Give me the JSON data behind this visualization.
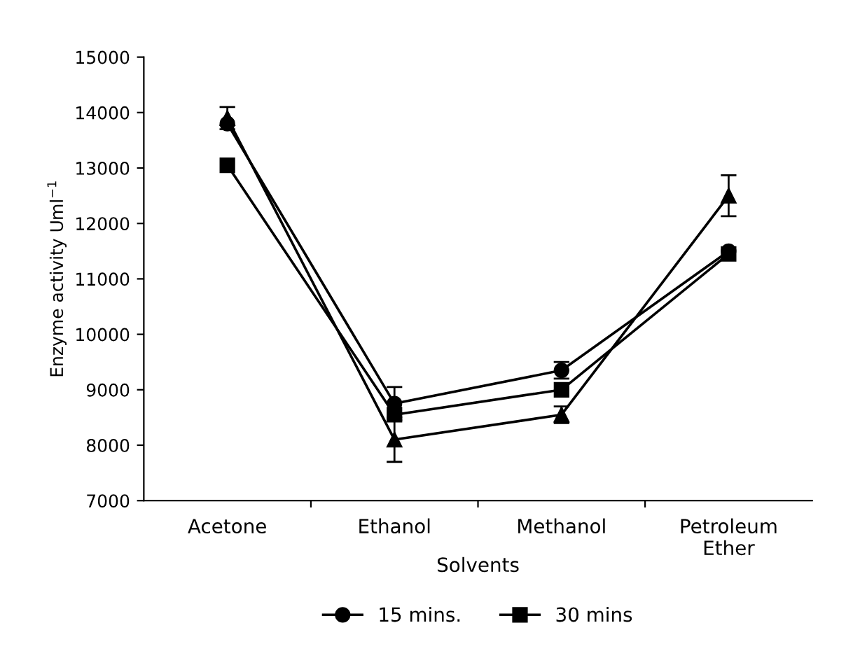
{
  "chart_data": {
    "type": "line",
    "xlabel": "Solvents",
    "ylabel": "Enzyme activity Uml$^{−1}$",
    "categories": [
      "Acetone",
      "Ethanol",
      "Methanol",
      "Petroleum\nEther"
    ],
    "ylim": [
      7000,
      15000
    ],
    "yticks": [
      7000,
      8000,
      9000,
      10000,
      11000,
      12000,
      13000,
      14000,
      15000
    ],
    "grid": false,
    "legend": "bottom",
    "series": [
      {
        "name": "15 mins.",
        "color": "#000000",
        "marker": "circle",
        "values": [
          13800,
          8750,
          9350,
          11500
        ],
        "errors": [
          null,
          300,
          150,
          null
        ]
      },
      {
        "name": "30 mins",
        "color": "#000000",
        "marker": "square",
        "values": [
          13050,
          8550,
          9000,
          11450
        ],
        "errors": [
          null,
          null,
          null,
          null
        ]
      },
      {
        "color": "#000000",
        "marker": "triangle",
        "values": [
          13900,
          8100,
          8550,
          12500
        ],
        "errors": [
          200,
          400,
          150,
          370
        ]
      }
    ]
  }
}
